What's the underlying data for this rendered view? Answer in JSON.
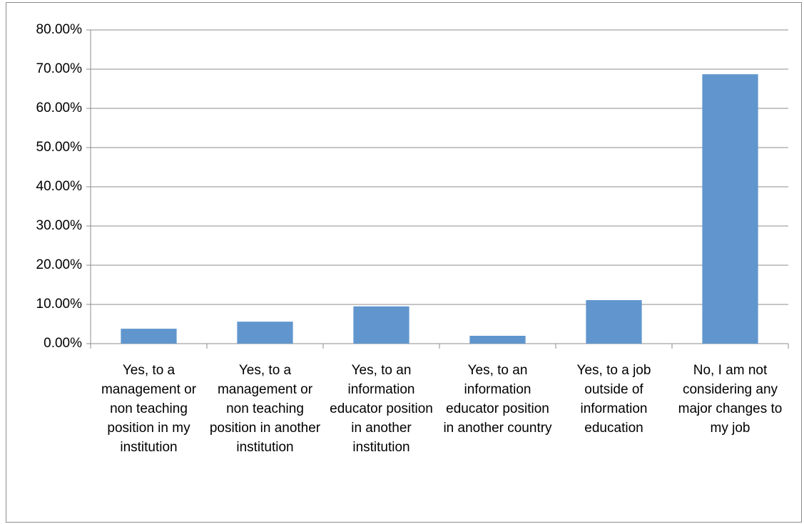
{
  "chart_data": {
    "type": "bar",
    "categories": [
      "Yes, to a management or non teaching position in my institution",
      "Yes, to a management or non teaching position in another institution",
      "Yes, to an information educator position in another institution",
      "Yes, to an information educator position in another country",
      "Yes, to a job outside of information education",
      "No, I am not considering any major changes to my job"
    ],
    "values": [
      3.8,
      5.6,
      9.5,
      2.0,
      11.1,
      68.7
    ],
    "color": "#6096cd",
    "ylim": [
      0,
      80
    ],
    "yticks": [
      {
        "value": 0,
        "label": "0.00%"
      },
      {
        "value": 10,
        "label": "10.00%"
      },
      {
        "value": 20,
        "label": "20.00%"
      },
      {
        "value": 30,
        "label": "30.00%"
      },
      {
        "value": 40,
        "label": "40.00%"
      },
      {
        "value": 50,
        "label": "50.00%"
      },
      {
        "value": 60,
        "label": "60.00%"
      },
      {
        "value": 70,
        "label": "70.00%"
      },
      {
        "value": 80,
        "label": "80.00%"
      }
    ],
    "grid": true
  }
}
